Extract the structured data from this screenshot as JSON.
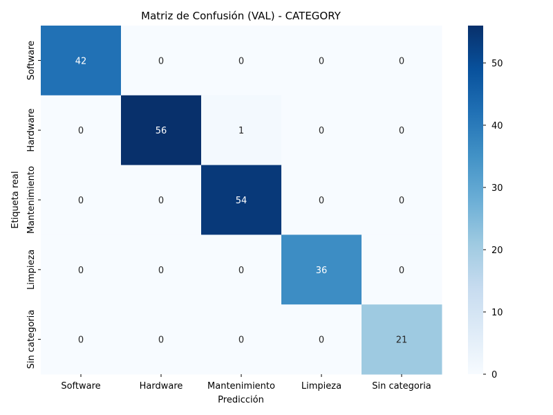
{
  "chart_data": {
    "type": "heatmap",
    "title": "Matriz de Confusión (VAL) - CATEGORY",
    "xlabel": "Predicción",
    "ylabel": "Etiqueta real",
    "x_categories": [
      "Software",
      "Hardware",
      "Mantenimiento",
      "Limpieza",
      "Sin categoria"
    ],
    "y_categories": [
      "Software",
      "Hardware",
      "Mantenimiento",
      "Limpieza",
      "Sin categoria"
    ],
    "values": [
      [
        42,
        0,
        0,
        0,
        0
      ],
      [
        0,
        56,
        1,
        0,
        0
      ],
      [
        0,
        0,
        54,
        0,
        0
      ],
      [
        0,
        0,
        0,
        36,
        0
      ],
      [
        0,
        0,
        0,
        0,
        21
      ]
    ],
    "colorbar": {
      "min": 0,
      "max": 56,
      "ticks": [
        0,
        10,
        20,
        30,
        40,
        50
      ]
    },
    "colormap": "Blues"
  }
}
